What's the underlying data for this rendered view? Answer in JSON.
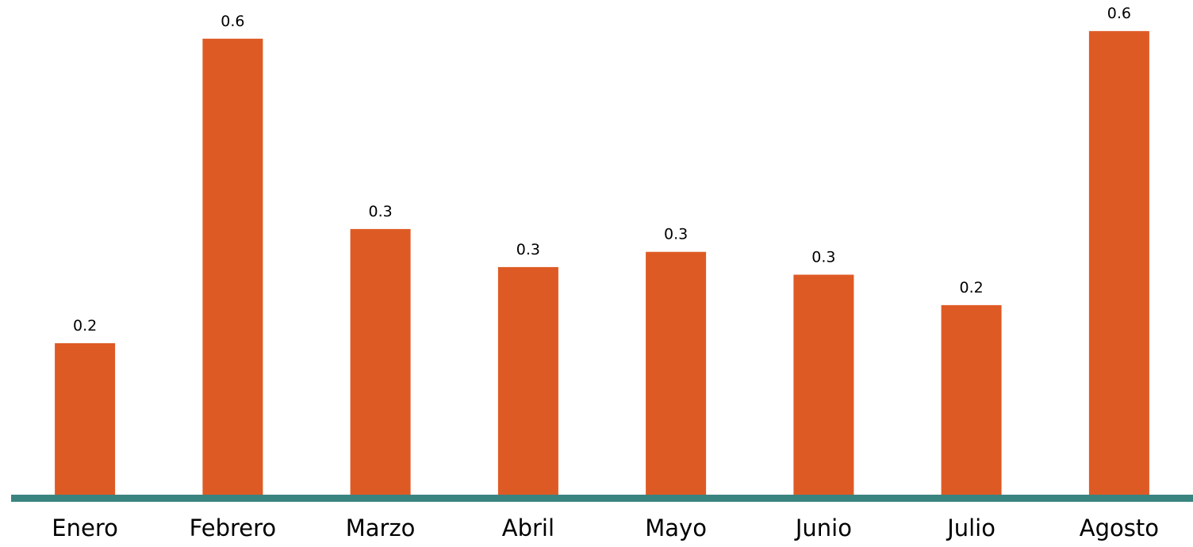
{
  "chart_data": {
    "type": "bar",
    "categories": [
      "Enero",
      "Febrero",
      "Marzo",
      "Abril",
      "Mayo",
      "Junio",
      "Julio",
      "Agosto"
    ],
    "values": [
      0.2,
      0.6,
      0.35,
      0.3,
      0.32,
      0.29,
      0.25,
      0.61
    ],
    "data_labels": [
      "0.2",
      "0.6",
      "0.3",
      "0.3",
      "0.3",
      "0.3",
      "0.2",
      "0.6"
    ],
    "title": "",
    "xlabel": "",
    "ylabel": "",
    "ylim": [
      0,
      0.63
    ],
    "grid": false,
    "legend": "none",
    "colors": {
      "bar": "#DE5A24",
      "axis": "#3A8480"
    }
  }
}
